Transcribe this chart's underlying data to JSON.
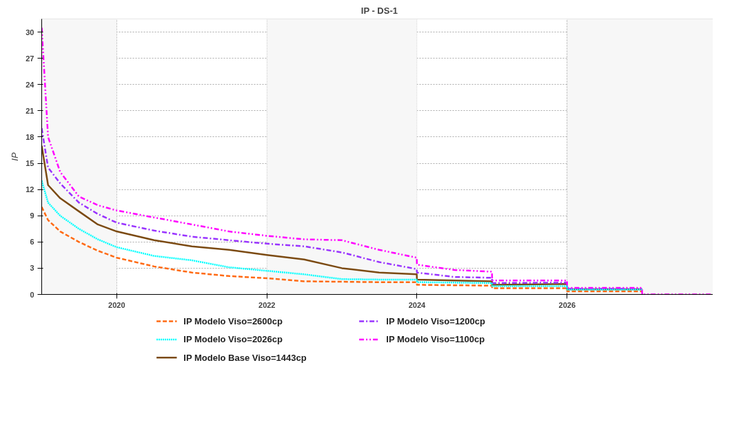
{
  "chart_data": {
    "type": "line",
    "title": "IP - DS-1",
    "ylabel": "IP",
    "xlim": [
      "2019-01-01",
      "2028-01-01"
    ],
    "ylim": [
      0,
      31.5
    ],
    "xticks": [
      {
        "value": "2020-01-01",
        "label": "2020"
      },
      {
        "value": "2022-01-01",
        "label": "2022"
      },
      {
        "value": "2024-01-01",
        "label": "2024"
      },
      {
        "value": "2026-01-01",
        "label": "2026"
      }
    ],
    "yticks": [
      0,
      3,
      6,
      9,
      12,
      15,
      18,
      21,
      24,
      27,
      30
    ],
    "grid": true,
    "legend": "bottom",
    "bands": [
      {
        "axis": "x",
        "from": "2019-01-01",
        "to": "2020-01-01",
        "color": "#f7f7f7"
      },
      {
        "axis": "x",
        "from": "2022-01-01",
        "to": "2024-01-01",
        "color": "#f7f7f7"
      },
      {
        "axis": "x",
        "from": "2026-01-01",
        "to": "2028-01-01",
        "color": "#f7f7f7"
      }
    ],
    "x": [
      "2019-01-01",
      "2019-02-01",
      "2019-04-01",
      "2019-07-01",
      "2019-10-01",
      "2020-01-01",
      "2020-07-01",
      "2021-01-01",
      "2021-07-01",
      "2022-01-01",
      "2022-07-01",
      "2023-01-01",
      "2023-07-01",
      "2023-12-31",
      "2024-01-01",
      "2024-07-01",
      "2024-12-31",
      "2025-01-01",
      "2025-12-31",
      "2026-01-01",
      "2026-12-31",
      "2027-01-01",
      "2028-01-01"
    ],
    "series": [
      {
        "name": "IP Modelo Viso=2600cp",
        "color": "#ff6a13",
        "line_style": "dashed",
        "values": [
          10.0,
          8.5,
          7.2,
          6.0,
          5.0,
          4.2,
          3.2,
          2.5,
          2.1,
          1.85,
          1.5,
          1.45,
          1.4,
          1.4,
          1.1,
          1.05,
          1.0,
          0.7,
          0.7,
          0.35,
          0.35,
          null,
          null
        ]
      },
      {
        "name": "IP Modelo Viso=2026cp",
        "color": "#00ffff",
        "line_style": "dotted",
        "values": [
          13.0,
          10.5,
          9.0,
          7.5,
          6.3,
          5.4,
          4.4,
          3.9,
          3.1,
          2.7,
          2.3,
          1.75,
          1.7,
          1.7,
          1.4,
          1.35,
          1.3,
          0.95,
          0.95,
          0.55,
          0.55,
          null,
          null
        ]
      },
      {
        "name": "IP Modelo Base Viso=1443cp",
        "color": "#7b4a12",
        "line_style": "solid",
        "values": [
          17.0,
          12.5,
          11.0,
          9.5,
          8.0,
          7.2,
          6.2,
          5.5,
          5.1,
          4.5,
          4.0,
          3.0,
          2.5,
          2.3,
          1.7,
          1.6,
          1.5,
          1.1,
          1.2,
          0.6,
          0.6,
          null,
          null
        ]
      },
      {
        "name": "IP Modelo Viso=1200cp",
        "color": "#9933ff",
        "line_style": "dashdot",
        "values": [
          19.0,
          14.5,
          12.7,
          10.5,
          9.2,
          8.2,
          7.3,
          6.6,
          6.2,
          5.8,
          5.5,
          4.8,
          3.7,
          2.9,
          2.5,
          2.0,
          1.9,
          1.3,
          1.35,
          0.65,
          0.65,
          null,
          null
        ]
      },
      {
        "name": "IP Modelo Viso=1100cp",
        "color": "#ff00ff",
        "line_style": "dashdotdot",
        "values": [
          30.5,
          18.0,
          14.0,
          11.2,
          10.2,
          9.6,
          8.8,
          8.0,
          7.2,
          6.7,
          6.3,
          6.2,
          5.1,
          4.2,
          3.4,
          2.8,
          2.6,
          1.6,
          1.6,
          0.75,
          0.75,
          0,
          0
        ]
      }
    ]
  }
}
